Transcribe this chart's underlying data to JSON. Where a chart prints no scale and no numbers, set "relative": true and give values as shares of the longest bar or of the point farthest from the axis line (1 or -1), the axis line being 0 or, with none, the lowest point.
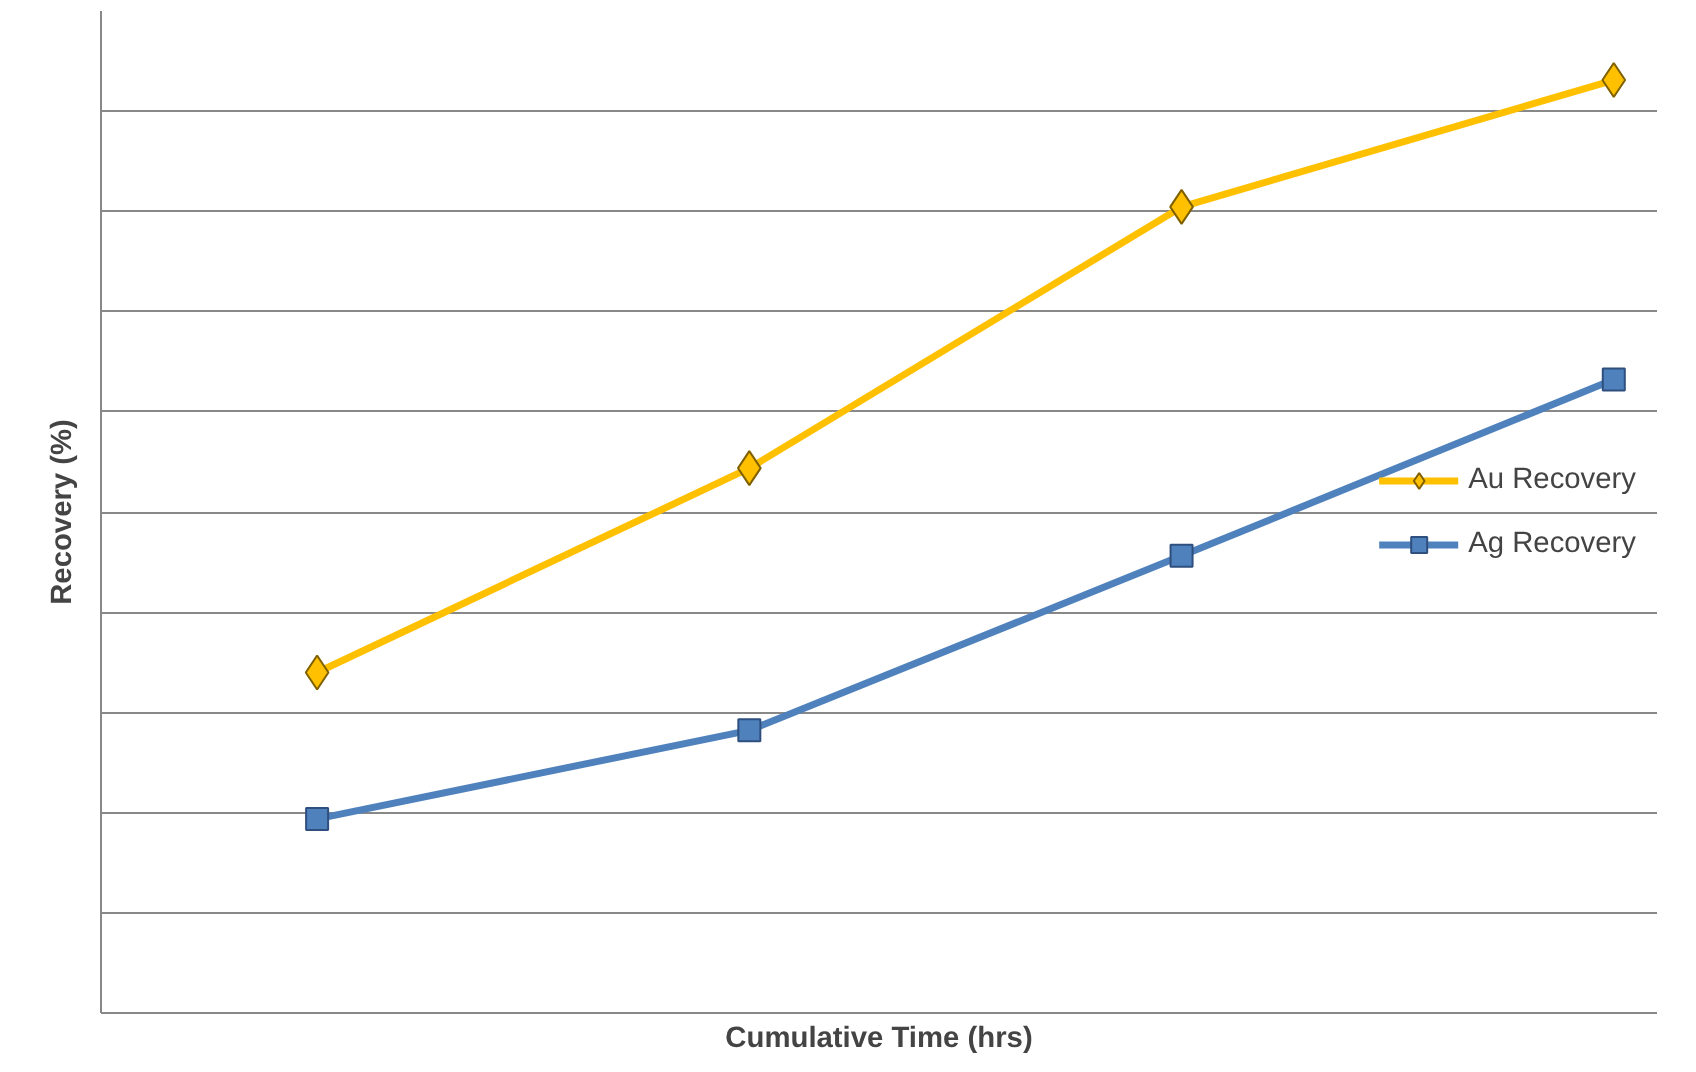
{
  "chart_data": {
    "type": "line",
    "xlabel": "Cumulative Time (hrs)",
    "ylabel": "Recovery (%)",
    "relative": true,
    "categories": [
      null,
      null,
      null,
      null
    ],
    "series": [
      {
        "name": "Au Recovery",
        "color": "#ffc000",
        "marker": "diamond",
        "values": [
          0.365,
          0.584,
          0.864,
          1.0
        ]
      },
      {
        "name": "Ag Recovery",
        "color": "#4f81bd",
        "marker": "square",
        "values": [
          0.208,
          0.303,
          0.49,
          0.679
        ]
      }
    ],
    "grid": "y",
    "legend": "right"
  }
}
